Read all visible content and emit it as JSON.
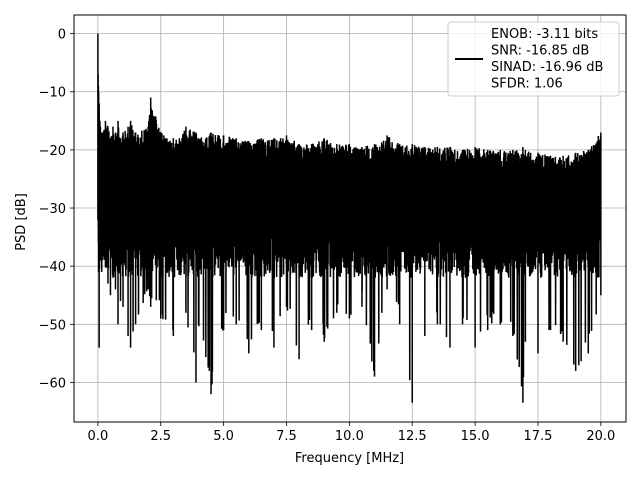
{
  "chart_data": {
    "type": "line",
    "xlabel": "Frequency [MHz]",
    "ylabel": "PSD [dB]",
    "xlim": [
      -0.95,
      21.0
    ],
    "ylim": [
      -66.8,
      3.2
    ],
    "xticks": [
      0.0,
      2.5,
      5.0,
      7.5,
      10.0,
      12.5,
      15.0,
      17.5,
      20.0
    ],
    "xtick_labels": [
      "0.0",
      "2.5",
      "5.0",
      "7.5",
      "10.0",
      "12.5",
      "15.0",
      "17.5",
      "20.0"
    ],
    "yticks": [
      0,
      -10,
      -20,
      -30,
      -40,
      -50,
      -60
    ],
    "ytick_labels": [
      "0",
      "−10",
      "−20",
      "−30",
      "−40",
      "−50",
      "−60"
    ],
    "grid": true,
    "legend_position": "upper-right",
    "series": [
      {
        "name": "ENOB: -3.11 bits\nSNR: -16.85 dB\nSINAD: -16.96 dB\nSFDR: 1.06",
        "color": "#000000",
        "x": [
          0.0,
          0.01,
          0.02,
          0.03,
          0.05,
          0.08,
          0.1,
          0.15,
          0.2,
          0.3,
          0.4,
          0.5,
          0.6,
          0.7,
          0.8,
          0.9,
          1.0,
          1.2,
          1.3,
          1.5,
          2.0,
          2.1,
          2.5,
          3.0,
          3.5,
          3.9,
          4.0,
          4.5,
          5.0,
          5.5,
          6.0,
          6.5,
          7.0,
          7.5,
          8.0,
          8.5,
          9.0,
          9.5,
          10.0,
          10.5,
          11.0,
          11.5,
          12.0,
          12.5,
          13.0,
          13.5,
          14.0,
          14.5,
          15.0,
          15.5,
          16.0,
          16.5,
          16.9,
          17.0,
          17.5,
          18.0,
          18.5,
          19.0,
          19.5,
          20.0
        ],
        "y_upper": [
          0.0,
          -7.0,
          -9.0,
          -10.0,
          -12.0,
          -15.0,
          -16.0,
          -17.0,
          -17.0,
          -15.0,
          -16.0,
          -18.0,
          -16.0,
          -17.0,
          -15.0,
          -18.0,
          -17.0,
          -16.0,
          -15.0,
          -17.0,
          -16.0,
          -11.0,
          -17.0,
          -18.0,
          -16.0,
          -17.0,
          -18.0,
          -17.0,
          -17.5,
          -18.0,
          -18.5,
          -18.0,
          -18.0,
          -17.5,
          -19.0,
          -19.0,
          -18.0,
          -19.0,
          -19.0,
          -19.5,
          -19.0,
          -17.5,
          -19.0,
          -19.0,
          -19.5,
          -19.5,
          -19.5,
          -20.0,
          -19.5,
          -20.0,
          -20.0,
          -20.0,
          -19.5,
          -20.0,
          -20.5,
          -21.0,
          -21.0,
          -20.5,
          -20.0,
          -17.0
        ],
        "y_lower": [
          -32.0,
          -30.0,
          -36.0,
          -41.0,
          -54.0,
          -36.0,
          -39.0,
          -41.0,
          -38.0,
          -40.0,
          -43.0,
          -45.0,
          -42.0,
          -44.0,
          -50.0,
          -46.0,
          -47.0,
          -52.0,
          -54.0,
          -50.0,
          -44.0,
          -47.0,
          -49.0,
          -52.0,
          -48.0,
          -60.0,
          -50.0,
          -62.0,
          -51.0,
          -50.0,
          -55.0,
          -51.0,
          -54.0,
          -47.0,
          -56.0,
          -51.0,
          -53.0,
          -48.0,
          -49.0,
          -47.0,
          -59.0,
          -44.0,
          -50.0,
          -63.5,
          -52.0,
          -50.0,
          -54.0,
          -50.0,
          -54.0,
          -51.0,
          -50.0,
          -52.0,
          -63.5,
          -53.0,
          -55.0,
          -51.0,
          -53.0,
          -58.0,
          -55.0,
          -45.0
        ],
        "typical_band": [
          -42.0,
          -20.0
        ]
      }
    ]
  }
}
